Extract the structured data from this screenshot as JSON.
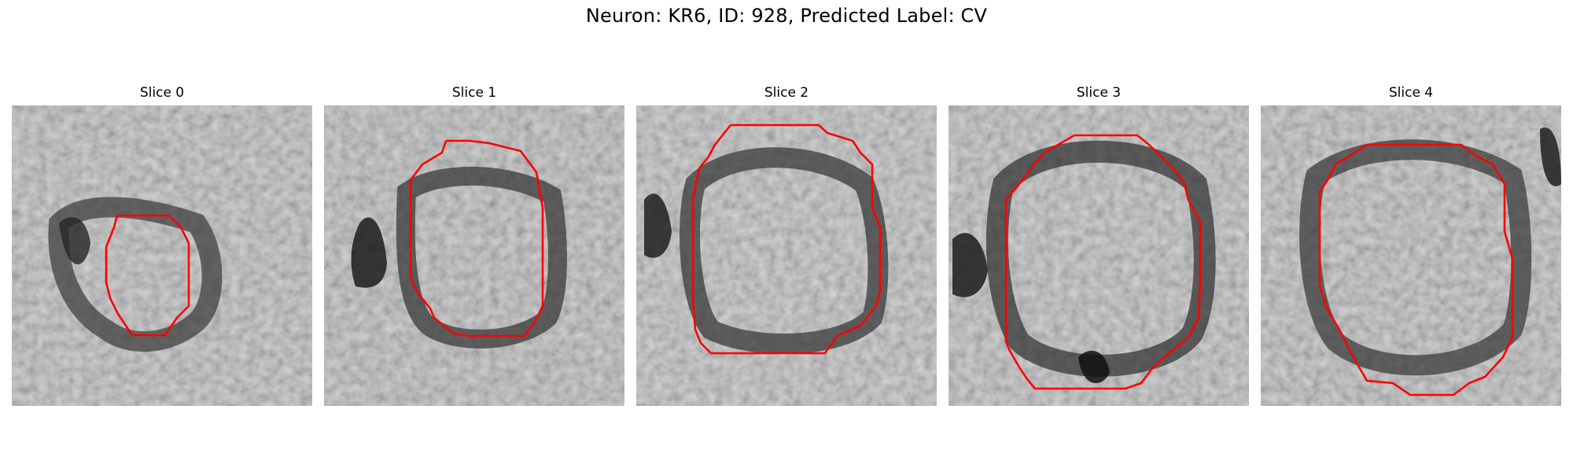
{
  "figure": {
    "title": "Neuron: KR6, ID: 928, Predicted Label: CV"
  },
  "contour_color": "#ff0000",
  "slices": [
    {
      "label": "Slice 0"
    },
    {
      "label": "Slice 1"
    },
    {
      "label": "Slice 2"
    },
    {
      "label": "Slice 3"
    },
    {
      "label": "Slice 4"
    }
  ]
}
